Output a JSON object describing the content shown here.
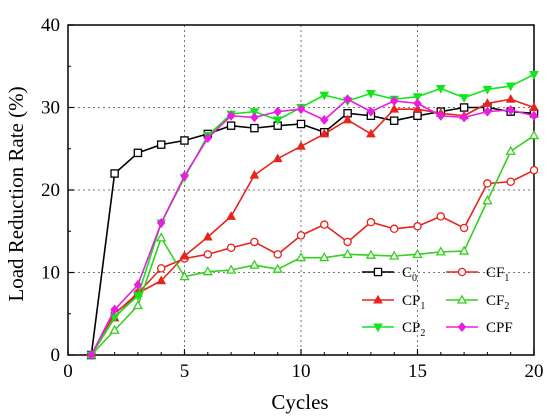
{
  "chart_data": {
    "type": "line",
    "xlabel": "Cycles",
    "ylabel": "Load Reduction Rate (%)",
    "xlim": [
      0,
      20
    ],
    "ylim": [
      0,
      40
    ],
    "xticks": [
      0,
      5,
      10,
      15,
      20
    ],
    "yticks": [
      0,
      10,
      20,
      30,
      40
    ],
    "grid": "dotted",
    "legend_position": "bottom-right",
    "x": [
      1,
      2,
      3,
      4,
      5,
      6,
      7,
      8,
      9,
      10,
      11,
      12,
      13,
      14,
      15,
      16,
      17,
      18,
      19,
      20
    ],
    "series": [
      {
        "name": "C",
        "sub": "0",
        "color": "#000000",
        "marker": "square-open",
        "values": [
          0,
          22,
          24.5,
          25.5,
          26,
          26.8,
          27.8,
          27.5,
          27.8,
          28,
          27,
          29.3,
          29,
          28.4,
          29,
          29.5,
          30,
          30,
          29.5,
          29.3
        ]
      },
      {
        "name": "CF",
        "sub": "1",
        "color": "#e8231c",
        "marker": "circle-open",
        "values": [
          0,
          5,
          7.5,
          10.5,
          11.7,
          12.2,
          13,
          13.7,
          12.2,
          14.5,
          15.8,
          13.7,
          16.1,
          15.3,
          15.6,
          16.8,
          15.4,
          20.8,
          21,
          22.4
        ]
      },
      {
        "name": "CP",
        "sub": "1",
        "color": "#e8231c",
        "marker": "triangle-filled",
        "values": [
          0,
          4.5,
          7.5,
          9,
          12,
          14.3,
          16.8,
          21.8,
          23.8,
          25.3,
          26.8,
          28.5,
          26.8,
          29.8,
          29.8,
          29.3,
          29,
          30.5,
          31,
          30
        ]
      },
      {
        "name": "CF",
        "sub": "2",
        "color": "#33d11e",
        "marker": "triangle-open",
        "values": [
          0,
          3,
          6,
          14.2,
          9.5,
          10.1,
          10.3,
          10.9,
          10.4,
          11.8,
          11.8,
          12.2,
          12.1,
          12,
          12.2,
          12.5,
          12.6,
          18.7,
          24.7,
          26.6
        ]
      },
      {
        "name": "CP",
        "sub": "2",
        "color": "#11e61c",
        "marker": "triangle-down-filled",
        "values": [
          0,
          4.6,
          7.2,
          16,
          21.5,
          26.6,
          29.2,
          29.5,
          28.5,
          30,
          31.5,
          30.8,
          31.7,
          31,
          31.3,
          32.3,
          31.2,
          32.2,
          32.6,
          34
        ]
      },
      {
        "name": "CPF",
        "sub": "",
        "color": "#e81ee0",
        "marker": "diamond-filled",
        "values": [
          0,
          5.5,
          8.5,
          16,
          21.7,
          26.3,
          29,
          28.8,
          29.5,
          29.8,
          28.5,
          31,
          29.5,
          30.8,
          30.5,
          29,
          28.8,
          29.5,
          29.7,
          29
        ]
      }
    ]
  }
}
